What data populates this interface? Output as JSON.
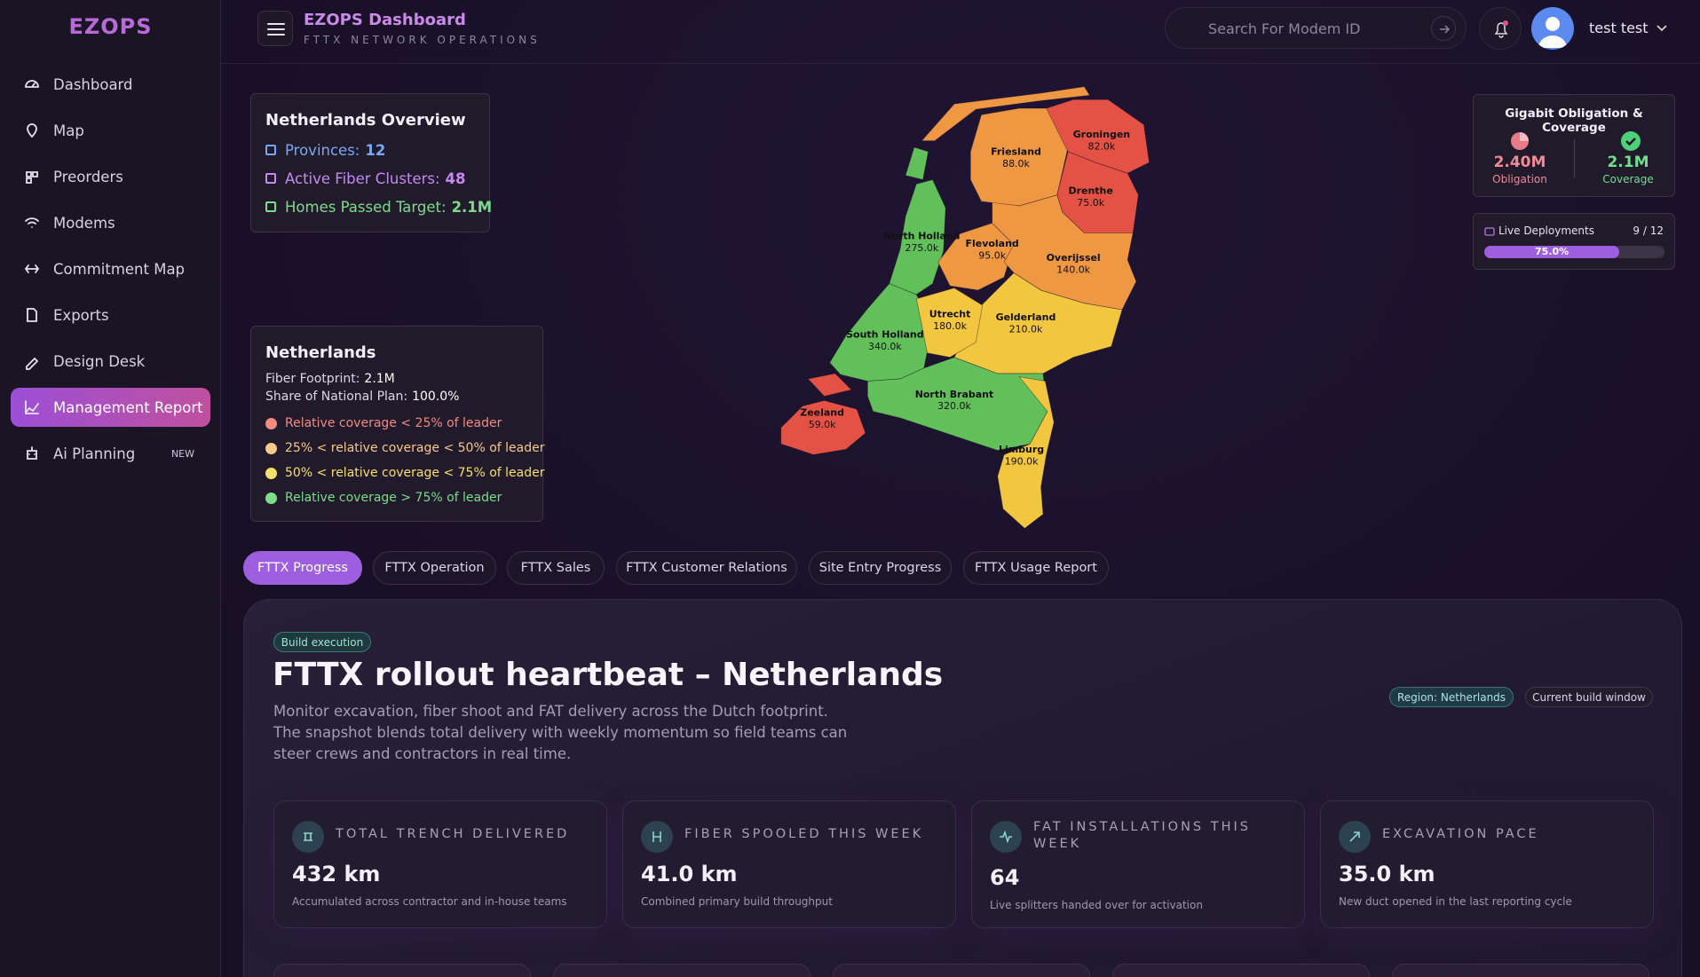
{
  "sidebar": {
    "logo": "EZOPS",
    "nav": [
      {
        "label": "Dashboard"
      },
      {
        "label": "Map"
      },
      {
        "label": "Preorders"
      },
      {
        "label": "Modems"
      },
      {
        "label": "Commitment Map"
      },
      {
        "label": "Exports"
      },
      {
        "label": "Design Desk"
      },
      {
        "label": "Management Report"
      },
      {
        "label": "Ai Planning",
        "badge": "NEW"
      }
    ]
  },
  "header": {
    "title": "EZOPS Dashboard",
    "subtitle": "FTTX NETWORK OPERATIONS",
    "search_placeholder": "Search For Modem ID",
    "user": "test test"
  },
  "overview": {
    "title": "Netherlands Overview",
    "items": [
      {
        "label": "Provinces:",
        "value": "12"
      },
      {
        "label": "Active Fiber Clusters:",
        "value": "48"
      },
      {
        "label": "Homes Passed Target:",
        "value": "2.1M"
      }
    ]
  },
  "region_card": {
    "title": "Netherlands",
    "stats": [
      {
        "label": "Fiber Footprint:",
        "value": "2.1M"
      },
      {
        "label": "Share of National Plan:",
        "value": "100.0%"
      }
    ],
    "legend": [
      "Relative coverage < 25% of leader",
      "25% < relative coverage < 50% of leader",
      "50% < relative coverage < 75% of leader",
      "Relative coverage > 75% of leader"
    ]
  },
  "map": {
    "provinces": [
      {
        "name": "Groningen",
        "value": "82.0k"
      },
      {
        "name": "Friesland",
        "value": "88.0k"
      },
      {
        "name": "Drenthe",
        "value": "75.0k"
      },
      {
        "name": "North Holland",
        "value": "275.0k"
      },
      {
        "name": "Flevoland",
        "value": "95.0k"
      },
      {
        "name": "Overijssel",
        "value": "140.0k"
      },
      {
        "name": "Utrecht",
        "value": "180.0k"
      },
      {
        "name": "Gelderland",
        "value": "210.0k"
      },
      {
        "name": "South Holland",
        "value": "340.0k"
      },
      {
        "name": "North Brabant",
        "value": "320.0k"
      },
      {
        "name": "Zeeland",
        "value": "59.0k"
      },
      {
        "name": "Limburg",
        "value": "190.0k"
      }
    ]
  },
  "gigabit": {
    "title": "Gigabit Obligation & Coverage",
    "obligation": {
      "value": "2.40M",
      "label": "Obligation"
    },
    "coverage": {
      "value": "2.1M",
      "label": "Coverage"
    }
  },
  "live_deployments": {
    "label": "Live Deployments",
    "count": "9 / 12",
    "progress": {
      "value": 75,
      "label": "75.0%"
    }
  },
  "tabs": [
    "FTTX Progress",
    "FTTX Operation",
    "FTTX Sales",
    "FTTX Customer Relations",
    "Site Entry Progress",
    "FTTX Usage Report"
  ],
  "panel": {
    "badge": "Build execution",
    "title": "FTTX rollout heartbeat – Netherlands",
    "description": "Monitor excavation, fiber shoot and FAT delivery across the Dutch footprint. The snapshot blends total delivery with weekly momentum so field teams can steer crews and contractors in real time.",
    "tags": [
      "Region: Netherlands",
      "Current build window"
    ],
    "stats": [
      {
        "title": "TOTAL TRENCH DELIVERED",
        "value": "432 km",
        "note": "Accumulated across contractor and in-house teams"
      },
      {
        "title": "FIBER SPOOLED THIS WEEK",
        "value": "41.0 km",
        "note": "Combined primary build throughput"
      },
      {
        "title": "FAT INSTALLATIONS THIS WEEK",
        "value": "64",
        "note": "Live splitters handed over for activation"
      },
      {
        "title": "EXCAVATION PACE",
        "value": "35.0 km",
        "note": "New duct opened in the last reporting cycle"
      }
    ]
  }
}
